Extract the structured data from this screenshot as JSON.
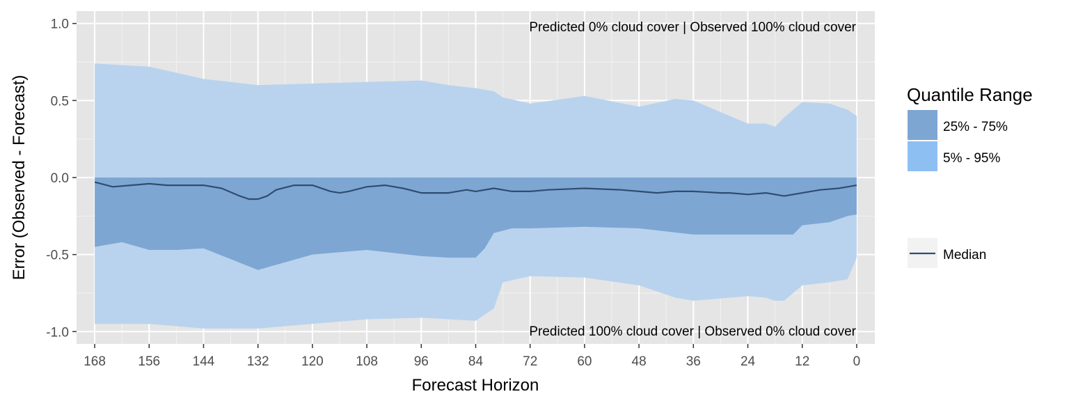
{
  "chart_data": {
    "type": "area",
    "xlabel": "Forecast Horizon",
    "ylabel": "Error (Observed - Forecast)",
    "xlim": [
      172,
      -4
    ],
    "ylim": [
      -1.08,
      1.08
    ],
    "x_reversed": true,
    "x_ticks": [
      168,
      156,
      144,
      132,
      120,
      108,
      96,
      84,
      72,
      60,
      48,
      36,
      24,
      12,
      0
    ],
    "x_tick_labels": [
      "168",
      "156",
      "144",
      "132",
      "120",
      "108",
      "96",
      "84",
      "72",
      "60",
      "48",
      "36",
      "24",
      "12",
      "0"
    ],
    "y_ticks": [
      1.0,
      0.5,
      0.0,
      -0.5,
      -1.0
    ],
    "y_tick_labels": [
      "1.0",
      "0.5",
      "0.0",
      "-0.5",
      "-1.0"
    ],
    "grid": true,
    "annotations": {
      "top": "Predicted 0% cloud cover  |  Observed 100% cloud cover",
      "bottom": "Predicted 100% cloud cover  |  Observed 0% cloud cover"
    },
    "legend": {
      "placement": "right",
      "title": "Quantile Range",
      "items": [
        {
          "label": "25% - 75%",
          "color": "#7ea6d3"
        },
        {
          "label": "5% - 95%",
          "color": "#8ebff3"
        }
      ],
      "line_item": {
        "label": "Median",
        "color": "#2f4d70"
      }
    },
    "series": [
      {
        "name": "5% - 95%",
        "kind": "band",
        "color": "#b9d3ee",
        "x": [
          168,
          156,
          144,
          132,
          120,
          108,
          96,
          90,
          84,
          80,
          78,
          72,
          60,
          48,
          40,
          36,
          24,
          20,
          18,
          16,
          12,
          6,
          2,
          0
        ],
        "lower": [
          -0.95,
          -0.95,
          -0.98,
          -0.98,
          -0.95,
          -0.92,
          -0.91,
          -0.92,
          -0.93,
          -0.85,
          -0.68,
          -0.64,
          -0.65,
          -0.7,
          -0.78,
          -0.8,
          -0.77,
          -0.78,
          -0.8,
          -0.8,
          -0.7,
          -0.68,
          -0.66,
          -0.52
        ],
        "upper": [
          0.74,
          0.72,
          0.64,
          0.6,
          0.61,
          0.62,
          0.63,
          0.6,
          0.58,
          0.56,
          0.52,
          0.48,
          0.53,
          0.46,
          0.51,
          0.5,
          0.35,
          0.35,
          0.33,
          0.39,
          0.49,
          0.48,
          0.44,
          0.4
        ]
      },
      {
        "name": "25% - 75%",
        "kind": "band",
        "color": "#7ea6d3",
        "x": [
          168,
          162,
          156,
          150,
          144,
          138,
          132,
          126,
          120,
          108,
          96,
          90,
          84,
          82,
          80,
          76,
          72,
          60,
          48,
          36,
          24,
          14,
          12,
          6,
          2,
          0
        ],
        "lower": [
          -0.45,
          -0.42,
          -0.47,
          -0.47,
          -0.46,
          -0.53,
          -0.6,
          -0.55,
          -0.5,
          -0.47,
          -0.51,
          -0.52,
          -0.52,
          -0.46,
          -0.36,
          -0.33,
          -0.33,
          -0.32,
          -0.33,
          -0.37,
          -0.37,
          -0.37,
          -0.31,
          -0.29,
          -0.25,
          -0.24
        ],
        "upper": [
          0.0,
          0.0,
          0.0,
          0.0,
          0.0,
          0.0,
          0.0,
          0.0,
          0.0,
          0.0,
          0.0,
          0.0,
          0.0,
          0.0,
          0.0,
          0.0,
          0.0,
          0.0,
          0.0,
          0.0,
          0.0,
          0.0,
          0.0,
          0.0,
          0.0,
          0.0
        ]
      },
      {
        "name": "Median",
        "kind": "line",
        "color": "#2f4d70",
        "x": [
          168,
          164,
          160,
          156,
          152,
          148,
          144,
          140,
          136,
          134,
          132,
          130,
          128,
          124,
          120,
          116,
          114,
          112,
          108,
          104,
          100,
          96,
          90,
          86,
          84,
          80,
          76,
          72,
          68,
          60,
          52,
          48,
          44,
          40,
          36,
          30,
          28,
          24,
          20,
          18,
          16,
          14,
          12,
          8,
          4,
          2,
          0
        ],
        "y": [
          -0.03,
          -0.06,
          -0.05,
          -0.04,
          -0.05,
          -0.05,
          -0.05,
          -0.07,
          -0.12,
          -0.14,
          -0.14,
          -0.12,
          -0.08,
          -0.05,
          -0.05,
          -0.09,
          -0.1,
          -0.09,
          -0.06,
          -0.05,
          -0.07,
          -0.1,
          -0.1,
          -0.08,
          -0.09,
          -0.07,
          -0.09,
          -0.09,
          -0.08,
          -0.07,
          -0.08,
          -0.09,
          -0.1,
          -0.09,
          -0.09,
          -0.1,
          -0.1,
          -0.11,
          -0.1,
          -0.11,
          -0.12,
          -0.11,
          -0.1,
          -0.08,
          -0.07,
          -0.06,
          -0.05
        ]
      }
    ]
  }
}
